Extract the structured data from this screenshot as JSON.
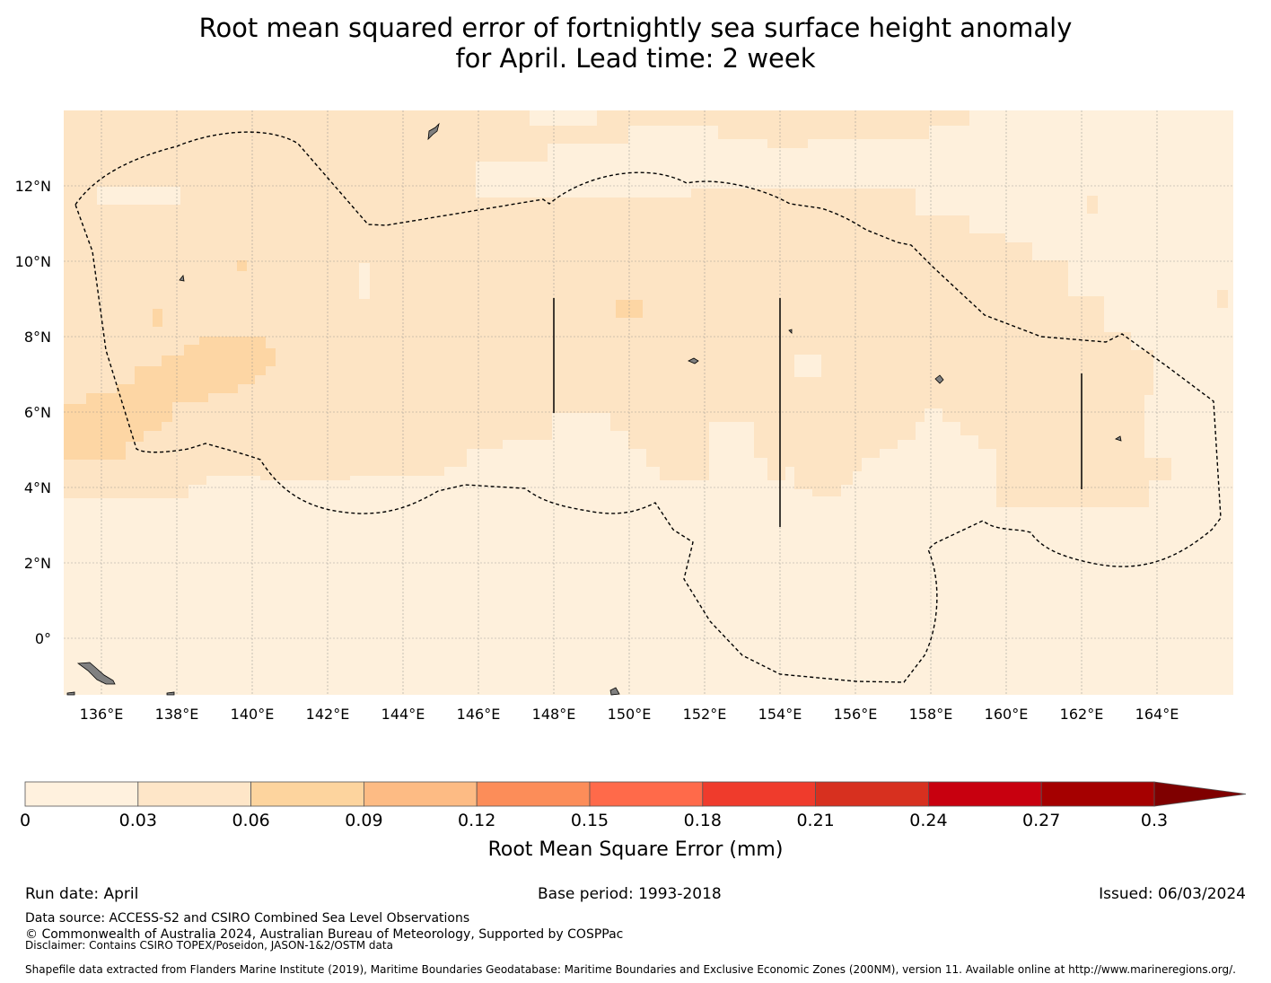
{
  "title": {
    "line1": "Root mean squared error of fortnightly sea surface height anomaly",
    "line2": "for April. Lead time: 2 week"
  },
  "map": {
    "lat_labels": [
      "12°N",
      "10°N",
      "8°N",
      "6°N",
      "4°N",
      "2°N",
      "0°"
    ],
    "lon_labels": [
      "136°E",
      "138°E",
      "140°E",
      "142°E",
      "144°E",
      "146°E",
      "148°E",
      "150°E",
      "152°E",
      "154°E",
      "156°E",
      "158°E",
      "160°E",
      "162°E",
      "164°E"
    ],
    "land_color": "#808080",
    "background_level_color": "#fef0dc"
  },
  "colorbar": {
    "ticks": [
      "0",
      "0.03",
      "0.06",
      "0.09",
      "0.12",
      "0.15",
      "0.18",
      "0.21",
      "0.24",
      "0.27",
      "0.3"
    ],
    "colors": [
      "#fff1de",
      "#fee6c8",
      "#fdd49e",
      "#fdbb84",
      "#fc8d59",
      "#ff6a4a",
      "#ef3b2c",
      "#d7301f",
      "#c8000f",
      "#a50000",
      "#7f0000"
    ],
    "label": "Root Mean Square Error (mm)",
    "extend": "max"
  },
  "footer": {
    "run_date": "Run date: April",
    "base_period": "Base period: 1993-2018",
    "issued": "Issued: 06/03/2024",
    "data_source": "Data source: ACCESS-S2 and CSIRO Combined Sea Level Observations",
    "copyright": "© Commonwealth of Australia 2024, Australian Bureau of Meteorology, Supported by COSPPac",
    "disclaimer": "Disclaimer: Contains CSIRO TOPEX/Poseidon, JASON-1&2/OSTM data",
    "shapefile": "Shapefile data extracted from Flanders Marine Institute (2019), Maritime Boundaries Geodatabase: Maritime Boundaries and Exclusive Economic Zones (200NM), version 11. Available online at http://www.marineregions.org/."
  }
}
